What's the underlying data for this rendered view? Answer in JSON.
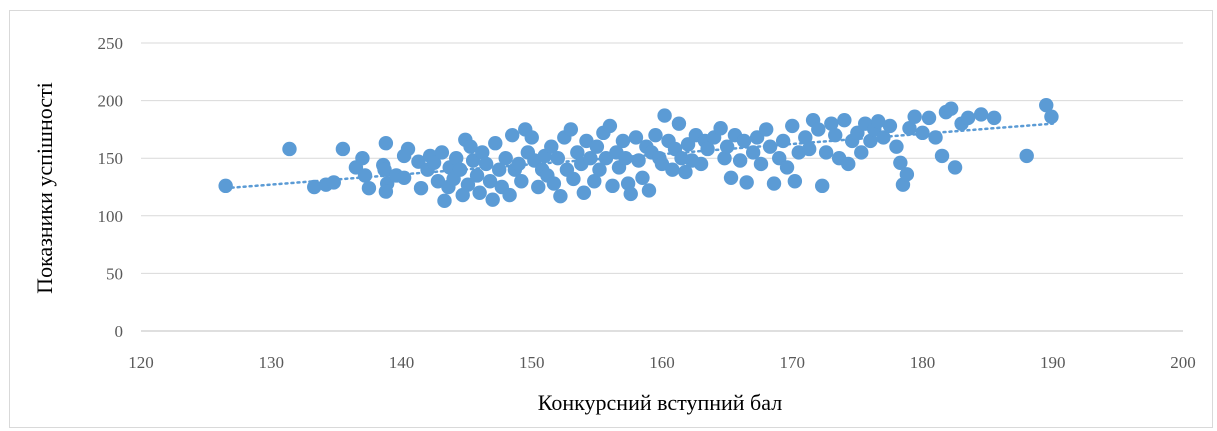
{
  "chart_data": {
    "type": "scatter",
    "title": "",
    "xlabel": "Конкурсний вступний бал",
    "ylabel": "Показники успішності",
    "xlim": [
      120,
      200
    ],
    "ylim": [
      0,
      250
    ],
    "x_ticks": [
      120,
      130,
      140,
      150,
      160,
      170,
      180,
      190,
      200
    ],
    "y_ticks": [
      0,
      50,
      100,
      150,
      200,
      250
    ],
    "grid": "horizontal",
    "legend": "none",
    "marker_color": "#5b9bd5",
    "trendline": {
      "type": "linear",
      "style": "dotted",
      "color": "#5b9bd5",
      "from": [
        126.5,
        124
      ],
      "to": [
        190,
        180
      ]
    },
    "series": [
      {
        "points": [
          [
            126.5,
            126
          ],
          [
            131.4,
            158
          ],
          [
            133.3,
            125
          ],
          [
            134.2,
            127
          ],
          [
            134.8,
            129
          ],
          [
            135.5,
            158
          ],
          [
            136.5,
            142
          ],
          [
            137,
            150
          ],
          [
            137.2,
            135
          ],
          [
            137.5,
            124
          ],
          [
            138.8,
            163
          ],
          [
            138.6,
            144
          ],
          [
            138.7,
            140
          ],
          [
            138.9,
            128
          ],
          [
            138.8,
            121
          ],
          [
            139.6,
            135
          ],
          [
            140.2,
            133
          ],
          [
            140.5,
            158
          ],
          [
            140.2,
            152
          ],
          [
            141.3,
            147
          ],
          [
            141.5,
            124
          ],
          [
            142,
            140
          ],
          [
            142.2,
            152
          ],
          [
            142.5,
            146
          ],
          [
            142.8,
            130
          ],
          [
            143.1,
            155
          ],
          [
            143.3,
            113
          ],
          [
            143.6,
            125
          ],
          [
            143.7,
            142
          ],
          [
            144,
            132
          ],
          [
            144.2,
            150
          ],
          [
            144.5,
            140
          ],
          [
            144.7,
            118
          ],
          [
            144.9,
            166
          ],
          [
            145.1,
            127
          ],
          [
            145.3,
            160
          ],
          [
            145.5,
            148
          ],
          [
            145.8,
            135
          ],
          [
            146,
            120
          ],
          [
            146.2,
            155
          ],
          [
            146.5,
            145
          ],
          [
            146.8,
            130
          ],
          [
            147,
            114
          ],
          [
            147.2,
            163
          ],
          [
            147.5,
            140
          ],
          [
            147.7,
            125
          ],
          [
            148,
            150
          ],
          [
            148.3,
            118
          ],
          [
            148.5,
            170
          ],
          [
            148.7,
            140
          ],
          [
            149,
            145
          ],
          [
            149.2,
            130
          ],
          [
            149.5,
            175
          ],
          [
            149.7,
            155
          ],
          [
            150,
            168
          ],
          [
            150.2,
            148
          ],
          [
            150.5,
            125
          ],
          [
            150.8,
            140
          ],
          [
            151,
            152
          ],
          [
            151.2,
            135
          ],
          [
            151.5,
            160
          ],
          [
            151.7,
            128
          ],
          [
            152,
            150
          ],
          [
            152.2,
            117
          ],
          [
            152.5,
            168
          ],
          [
            152.7,
            140
          ],
          [
            153,
            175
          ],
          [
            153.2,
            132
          ],
          [
            153.5,
            155
          ],
          [
            153.8,
            145
          ],
          [
            154,
            120
          ],
          [
            154.2,
            165
          ],
          [
            154.5,
            150
          ],
          [
            154.8,
            130
          ],
          [
            155,
            160
          ],
          [
            155.2,
            140
          ],
          [
            155.5,
            172
          ],
          [
            155.7,
            150
          ],
          [
            156,
            178
          ],
          [
            156.2,
            126
          ],
          [
            156.5,
            155
          ],
          [
            156.7,
            142
          ],
          [
            157,
            165
          ],
          [
            157.2,
            150
          ],
          [
            157.4,
            128
          ],
          [
            157.6,
            119
          ],
          [
            158,
            168
          ],
          [
            158.2,
            148
          ],
          [
            158.5,
            133
          ],
          [
            158.8,
            160
          ],
          [
            159,
            122
          ],
          [
            159.2,
            155
          ],
          [
            159.5,
            170
          ],
          [
            159.8,
            150
          ],
          [
            160,
            145
          ],
          [
            160.2,
            187
          ],
          [
            160.5,
            165
          ],
          [
            160.8,
            140
          ],
          [
            161,
            158
          ],
          [
            161.3,
            180
          ],
          [
            161.5,
            150
          ],
          [
            161.8,
            138
          ],
          [
            162,
            162
          ],
          [
            162.3,
            148
          ],
          [
            162.6,
            170
          ],
          [
            163,
            145
          ],
          [
            163.3,
            165
          ],
          [
            163.5,
            158
          ],
          [
            164,
            168
          ],
          [
            164.5,
            176
          ],
          [
            164.8,
            150
          ],
          [
            165,
            160
          ],
          [
            165.3,
            133
          ],
          [
            165.6,
            170
          ],
          [
            166,
            148
          ],
          [
            166.3,
            165
          ],
          [
            166.5,
            129
          ],
          [
            167,
            155
          ],
          [
            167.3,
            168
          ],
          [
            167.6,
            145
          ],
          [
            168,
            175
          ],
          [
            168.3,
            160
          ],
          [
            168.6,
            128
          ],
          [
            169,
            150
          ],
          [
            169.3,
            165
          ],
          [
            169.6,
            142
          ],
          [
            170,
            178
          ],
          [
            170.2,
            130
          ],
          [
            170.5,
            155
          ],
          [
            171,
            168
          ],
          [
            171.3,
            158
          ],
          [
            171.6,
            183
          ],
          [
            172,
            175
          ],
          [
            172.3,
            126
          ],
          [
            172.6,
            155
          ],
          [
            173,
            180
          ],
          [
            173.3,
            170
          ],
          [
            173.6,
            150
          ],
          [
            174,
            183
          ],
          [
            174.3,
            145
          ],
          [
            174.6,
            165
          ],
          [
            175,
            172
          ],
          [
            175.3,
            155
          ],
          [
            175.6,
            180
          ],
          [
            176,
            165
          ],
          [
            176.3,
            175
          ],
          [
            176.6,
            182
          ],
          [
            177,
            168
          ],
          [
            177.5,
            178
          ],
          [
            178,
            160
          ],
          [
            178.3,
            146
          ],
          [
            178.5,
            127
          ],
          [
            178.8,
            136
          ],
          [
            179,
            176
          ],
          [
            179.4,
            186
          ],
          [
            180,
            172
          ],
          [
            180.5,
            185
          ],
          [
            181,
            168
          ],
          [
            181.5,
            152
          ],
          [
            181.8,
            190
          ],
          [
            182.2,
            193
          ],
          [
            182.5,
            142
          ],
          [
            183,
            180
          ],
          [
            183.5,
            185
          ],
          [
            184.5,
            188
          ],
          [
            185.5,
            185
          ],
          [
            188,
            152
          ],
          [
            189.5,
            196
          ],
          [
            189.9,
            186
          ]
        ]
      }
    ]
  }
}
